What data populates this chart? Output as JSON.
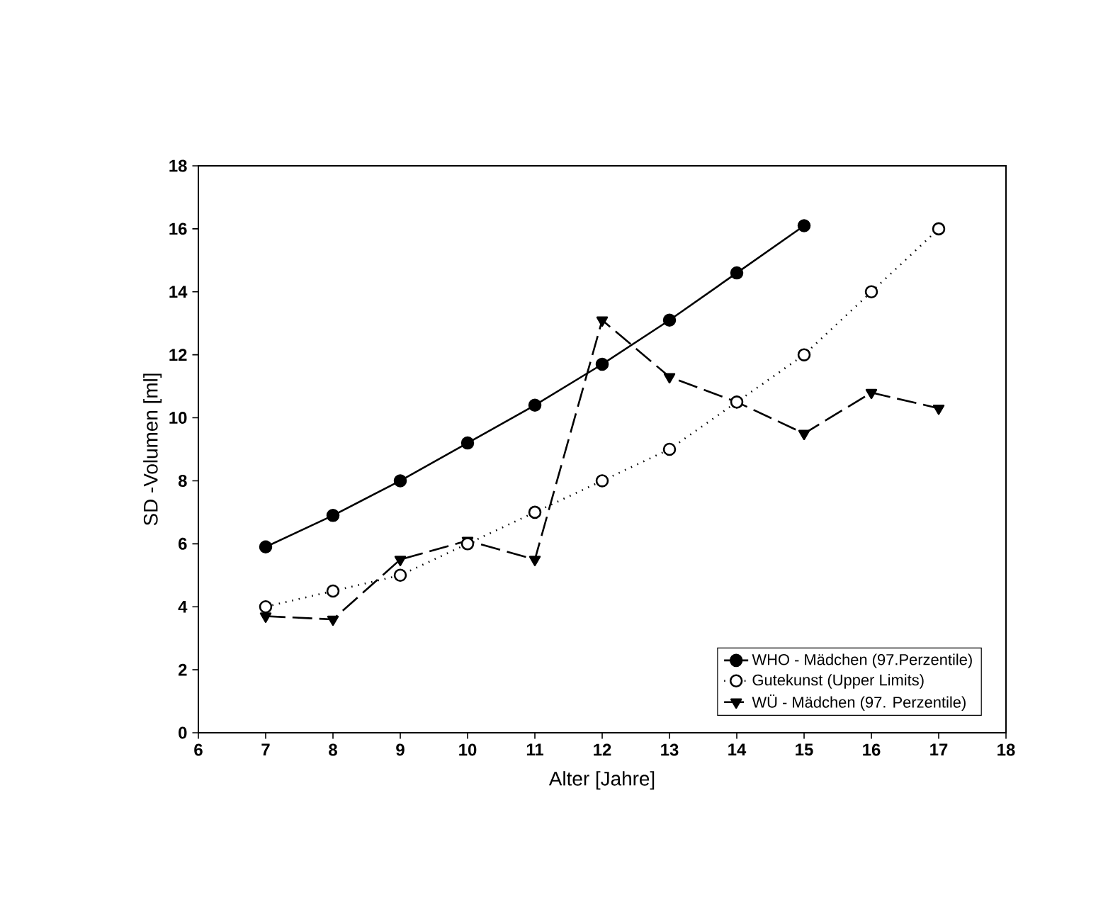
{
  "chart_data": {
    "type": "line",
    "xlabel": "Alter [Jahre]",
    "ylabel": "SD -Volumen [ml]",
    "xlim": [
      6,
      18
    ],
    "xticks": [
      6,
      7,
      8,
      9,
      10,
      11,
      12,
      13,
      14,
      15,
      16,
      17,
      18
    ],
    "ylim": [
      0,
      18
    ],
    "yticks": [
      0,
      2,
      4,
      6,
      8,
      10,
      12,
      14,
      16,
      18
    ],
    "grid": false,
    "legend": "bottom right",
    "series": [
      {
        "name": "WHO - Mädchen (97.Perzentile)",
        "color": "#000000",
        "marker": "circle",
        "line_style": "solid",
        "x": [
          7,
          8,
          9,
          10,
          11,
          12,
          13,
          14,
          15
        ],
        "values": [
          5.9,
          6.9,
          8.0,
          9.2,
          10.4,
          11.7,
          13.1,
          14.6,
          16.1
        ]
      },
      {
        "name": "Gutekunst (Upper Limits)",
        "color": "#000000",
        "marker": "circle",
        "line_style": "dotted",
        "x": [
          7,
          8,
          9,
          10,
          11,
          12,
          13,
          14,
          15,
          16,
          17
        ],
        "values": [
          4.0,
          4.5,
          5.0,
          6.0,
          7.0,
          8.0,
          9.0,
          10.5,
          12.0,
          14.0,
          16.0
        ]
      },
      {
        "name": "WÜ - Mädchen (97. Perzentile)",
        "color": "#000000",
        "marker": "triangle",
        "line_style": "dashed",
        "x": [
          7,
          8,
          9,
          10,
          11,
          12,
          13,
          14,
          15,
          16,
          17
        ],
        "values": [
          3.7,
          3.6,
          5.5,
          6.1,
          5.5,
          13.1,
          11.3,
          10.5,
          9.5,
          10.8,
          10.3
        ]
      }
    ]
  }
}
